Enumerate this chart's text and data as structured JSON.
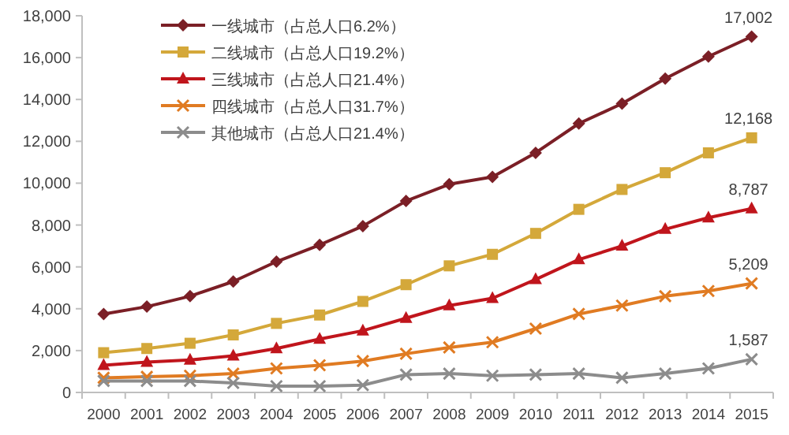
{
  "chart_data": {
    "type": "line",
    "categories": [
      "2000",
      "2001",
      "2002",
      "2003",
      "2004",
      "2005",
      "2006",
      "2007",
      "2008",
      "2009",
      "2010",
      "2011",
      "2012",
      "2013",
      "2014",
      "2015"
    ],
    "ylim": [
      0,
      18000
    ],
    "yticks": [
      0,
      {
        "value": 2000,
        "label": "2,000"
      },
      {
        "value": 4000,
        "label": "4,000"
      },
      {
        "value": 6000,
        "label": "6,000"
      },
      {
        "value": 8000,
        "label": "8,000"
      },
      {
        "value": 10000,
        "label": "10,000"
      },
      {
        "value": 12000,
        "label": "12,000"
      },
      {
        "value": 14000,
        "label": "14,000"
      },
      {
        "value": 16000,
        "label": "16,000"
      },
      {
        "value": 18000,
        "label": "18,000"
      }
    ],
    "legend": "top left",
    "series": [
      {
        "name": "一线城市（占总人口6.2%）",
        "color": "#7b1f26",
        "marker": "diamond",
        "values": [
          3750,
          4100,
          4600,
          5300,
          6250,
          7050,
          7950,
          9150,
          9950,
          10300,
          11450,
          12850,
          13800,
          15000,
          16050,
          17002
        ],
        "value_labels": [
          null,
          null,
          null,
          null,
          null,
          null,
          null,
          null,
          null,
          null,
          null,
          null,
          null,
          null,
          null,
          "17,002"
        ]
      },
      {
        "name": "二线城市（占总人口19.2%）",
        "color": "#d4a83a",
        "marker": "square",
        "values": [
          1900,
          2100,
          2350,
          2750,
          3300,
          3700,
          4350,
          5150,
          6050,
          6600,
          7600,
          8750,
          9700,
          10500,
          11450,
          12168
        ],
        "value_labels": [
          null,
          null,
          null,
          null,
          null,
          null,
          null,
          null,
          null,
          null,
          null,
          null,
          null,
          null,
          null,
          "12,168"
        ]
      },
      {
        "name": "三线城市（占总人口21.4%）",
        "color": "#c0151c",
        "marker": "triangle",
        "values": [
          1300,
          1450,
          1550,
          1750,
          2100,
          2550,
          2950,
          3550,
          4150,
          4500,
          5400,
          6350,
          7000,
          7800,
          8350,
          8787
        ],
        "value_labels": [
          null,
          null,
          null,
          null,
          null,
          null,
          null,
          null,
          null,
          null,
          null,
          null,
          null,
          null,
          null,
          "8,787"
        ]
      },
      {
        "name": "四线城市（占总人口31.7%）",
        "color": "#e07b22",
        "marker": "cross",
        "values": [
          700,
          750,
          800,
          900,
          1150,
          1300,
          1500,
          1850,
          2150,
          2400,
          3050,
          3750,
          4150,
          4600,
          4850,
          5209
        ],
        "value_labels": [
          null,
          null,
          null,
          null,
          null,
          null,
          null,
          null,
          null,
          null,
          null,
          null,
          null,
          null,
          null,
          "5,209"
        ]
      },
      {
        "name": "其他城市（占总人口21.4%）",
        "color": "#8c8c8c",
        "marker": "cross",
        "values": [
          550,
          550,
          550,
          450,
          300,
          300,
          350,
          850,
          900,
          800,
          850,
          900,
          700,
          900,
          1150,
          1587
        ],
        "value_labels": [
          null,
          null,
          null,
          null,
          null,
          null,
          null,
          null,
          null,
          null,
          null,
          null,
          null,
          null,
          null,
          "1,587"
        ]
      }
    ]
  }
}
